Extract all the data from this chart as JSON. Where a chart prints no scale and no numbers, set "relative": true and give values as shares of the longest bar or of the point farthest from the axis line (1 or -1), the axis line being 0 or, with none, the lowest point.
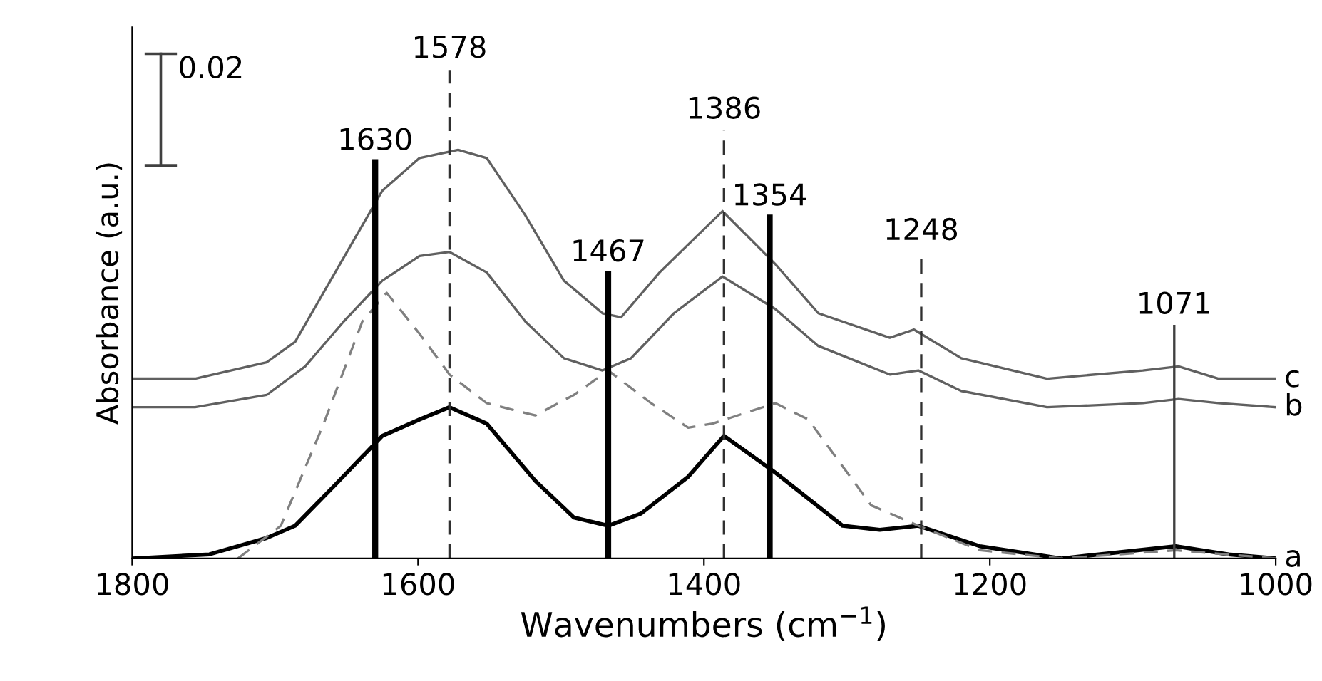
{
  "chart_data": {
    "type": "line",
    "relative": true,
    "xlabel": "Wavenumbers (cm$^{−1}$)",
    "ylabel": "Absorbance (a.u.)",
    "xlim": [
      1800,
      1000
    ],
    "xticks": [
      1800,
      1600,
      1400,
      1200,
      1000
    ],
    "legend": false,
    "grid": false,
    "annotations": [
      "0.02"
    ],
    "series": [
      {
        "name": "c",
        "color": "#606060",
        "line_style": "solid",
        "x": [
          1800,
          1756,
          1706,
          1686,
          1658,
          1625,
          1599,
          1572,
          1552,
          1525,
          1498,
          1471,
          1458,
          1431,
          1387,
          1350,
          1320,
          1270,
          1253,
          1220,
          1160,
          1093,
          1068,
          1040,
          1000
        ],
        "values": [
          0.44,
          0.44,
          0.48,
          0.53,
          0.7,
          0.9,
          0.98,
          1.0,
          0.98,
          0.84,
          0.68,
          0.6,
          0.59,
          0.7,
          0.85,
          0.72,
          0.6,
          0.54,
          0.56,
          0.49,
          0.44,
          0.46,
          0.47,
          0.44,
          0.44
        ]
      },
      {
        "name": "b",
        "color": "#606060",
        "line_style": "solid",
        "x": [
          1800,
          1756,
          1706,
          1679,
          1652,
          1625,
          1599,
          1578,
          1552,
          1525,
          1498,
          1471,
          1451,
          1421,
          1387,
          1350,
          1320,
          1270,
          1250,
          1220,
          1160,
          1093,
          1068,
          1040,
          1000
        ],
        "values": [
          0.37,
          0.37,
          0.4,
          0.47,
          0.58,
          0.68,
          0.74,
          0.75,
          0.7,
          0.58,
          0.49,
          0.46,
          0.49,
          0.6,
          0.69,
          0.61,
          0.52,
          0.45,
          0.46,
          0.41,
          0.37,
          0.38,
          0.39,
          0.38,
          0.37
        ]
      },
      {
        "name": "a",
        "color": "#000000",
        "line_style": "solid",
        "x": [
          1800,
          1746,
          1706,
          1686,
          1658,
          1625,
          1599,
          1578,
          1552,
          1518,
          1491,
          1467,
          1444,
          1411,
          1386,
          1350,
          1303,
          1277,
          1250,
          1207,
          1150,
          1070,
          1033,
          1000
        ],
        "values": [
          0.0,
          0.01,
          0.05,
          0.08,
          0.18,
          0.3,
          0.34,
          0.37,
          0.33,
          0.19,
          0.1,
          0.08,
          0.11,
          0.2,
          0.3,
          0.21,
          0.08,
          0.07,
          0.08,
          0.03,
          0.0,
          0.03,
          0.01,
          0.0
        ]
      },
      {
        "color": "#808080",
        "line_style": "dashed",
        "x": [
          1726,
          1696,
          1666,
          1639,
          1622,
          1599,
          1578,
          1552,
          1518,
          1491,
          1467,
          1437,
          1411,
          1394,
          1350,
          1327,
          1283,
          1250,
          1207,
          1150,
          1070,
          1000
        ],
        "values": [
          0.0,
          0.08,
          0.33,
          0.58,
          0.65,
          0.55,
          0.45,
          0.38,
          0.35,
          0.4,
          0.46,
          0.38,
          0.32,
          0.33,
          0.38,
          0.34,
          0.13,
          0.08,
          0.02,
          0.0,
          0.02,
          0.0
        ]
      }
    ],
    "ref_lines": [
      {
        "axis": "x",
        "value": 1630,
        "label": "1630",
        "line_style": "solid",
        "color": "#000000"
      },
      {
        "axis": "x",
        "value": 1578,
        "label": "1578",
        "line_style": "dashed",
        "color": "#303030"
      },
      {
        "axis": "x",
        "value": 1467,
        "label": "1467",
        "line_style": "solid",
        "color": "#000000"
      },
      {
        "axis": "x",
        "value": 1386,
        "label": "1386",
        "line_style": "dashed",
        "color": "#303030"
      },
      {
        "axis": "x",
        "value": 1354,
        "label": "1354",
        "line_style": "solid",
        "color": "#000000"
      },
      {
        "axis": "x",
        "value": 1248,
        "label": "1248",
        "line_style": "dashed",
        "color": "#303030"
      },
      {
        "axis": "x",
        "value": 1071,
        "label": "1071",
        "line_style": "solid",
        "color": "#404040"
      }
    ]
  }
}
